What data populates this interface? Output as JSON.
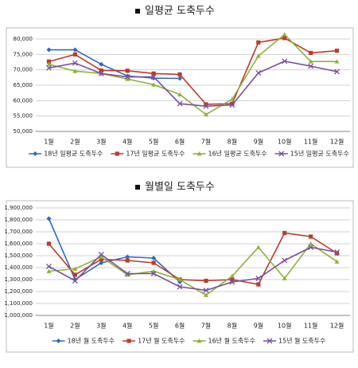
{
  "chart_data": [
    {
      "type": "line",
      "title": "일평균 도축두수",
      "categories": [
        "1월",
        "2월",
        "3월",
        "4월",
        "5월",
        "6월",
        "7월",
        "8월",
        "9월",
        "10월",
        "11월",
        "12월"
      ],
      "ylim": [
        50000,
        80000
      ],
      "yticks": [
        {
          "value": 50000,
          "label": "50,000"
        },
        {
          "value": 55000,
          "label": "55,000"
        },
        {
          "value": 60000,
          "label": "60,000"
        },
        {
          "value": 65000,
          "label": "65,000"
        },
        {
          "value": 70000,
          "label": "70,000"
        },
        {
          "value": 75000,
          "label": "75,000"
        },
        {
          "value": 80000,
          "label": "80,000"
        }
      ],
      "grid": true,
      "series": [
        {
          "name": "18년 일평균 도축두수",
          "color": "#2e6bc0",
          "marker": "diamond",
          "values": [
            76500,
            76500,
            71800,
            68000,
            67300,
            67200,
            null,
            null,
            null,
            null,
            null,
            null
          ]
        },
        {
          "name": "17년 일평균 도축두수",
          "color": "#c0392b",
          "marker": "square",
          "values": [
            72700,
            75000,
            69800,
            69700,
            68800,
            68500,
            58800,
            59000,
            78900,
            80300,
            75500,
            76200
          ]
        },
        {
          "name": "16년 일평균 도축두수",
          "color": "#8db33a",
          "marker": "triangle",
          "values": [
            71800,
            69600,
            68800,
            67000,
            65200,
            62000,
            55500,
            60500,
            74500,
            81500,
            72700,
            72700
          ]
        },
        {
          "name": "15년 일평균 도축두수",
          "color": "#7b4fa0",
          "marker": "cross",
          "values": [
            70600,
            72200,
            68800,
            67700,
            67700,
            59000,
            58200,
            58600,
            69000,
            72800,
            71200,
            69400
          ]
        }
      ]
    },
    {
      "type": "line",
      "title": "월별일 도축두수",
      "categories": [
        "1월",
        "2월",
        "3월",
        "4월",
        "5월",
        "6월",
        "7월",
        "8월",
        "9월",
        "10월",
        "11월",
        "12월"
      ],
      "ylim": [
        1000000,
        1900000
      ],
      "yticks": [
        {
          "value": 1000000,
          "label": "1,000,000"
        },
        {
          "value": 1100000,
          "label": "1,100,000"
        },
        {
          "value": 1200000,
          "label": "1,200,000"
        },
        {
          "value": 1300000,
          "label": "1,300,000"
        },
        {
          "value": 1400000,
          "label": "1,400,000"
        },
        {
          "value": 1500000,
          "label": "1,500,000"
        },
        {
          "value": 1600000,
          "label": "1,600,000"
        },
        {
          "value": 1700000,
          "label": "1,700,000"
        },
        {
          "value": 1800000,
          "label": "1,800,000"
        },
        {
          "value": 1900000,
          "label": "1,900,000"
        }
      ],
      "grid": true,
      "series": [
        {
          "name": "18년 월 도축두수",
          "color": "#2e6bc0",
          "marker": "diamond",
          "values": [
            1810000,
            1300000,
            1440000,
            1490000,
            1480000,
            1280000,
            null,
            null,
            null,
            null,
            null,
            null
          ]
        },
        {
          "name": "17년 월 도축두수",
          "color": "#c0392b",
          "marker": "square",
          "values": [
            1600000,
            1340000,
            1470000,
            1460000,
            1440000,
            1300000,
            1290000,
            1300000,
            1260000,
            1690000,
            1660000,
            1520000
          ]
        },
        {
          "name": "16년 월 도축두수",
          "color": "#8db33a",
          "marker": "triangle",
          "values": [
            1370000,
            1390000,
            1490000,
            1340000,
            1370000,
            1300000,
            1170000,
            1330000,
            1570000,
            1310000,
            1600000,
            1450000
          ]
        },
        {
          "name": "15년 월 도축두수",
          "color": "#7b4fa0",
          "marker": "cross",
          "values": [
            1410000,
            1290000,
            1510000,
            1350000,
            1350000,
            1240000,
            1210000,
            1280000,
            1310000,
            1460000,
            1570000,
            1530000
          ]
        }
      ]
    }
  ]
}
